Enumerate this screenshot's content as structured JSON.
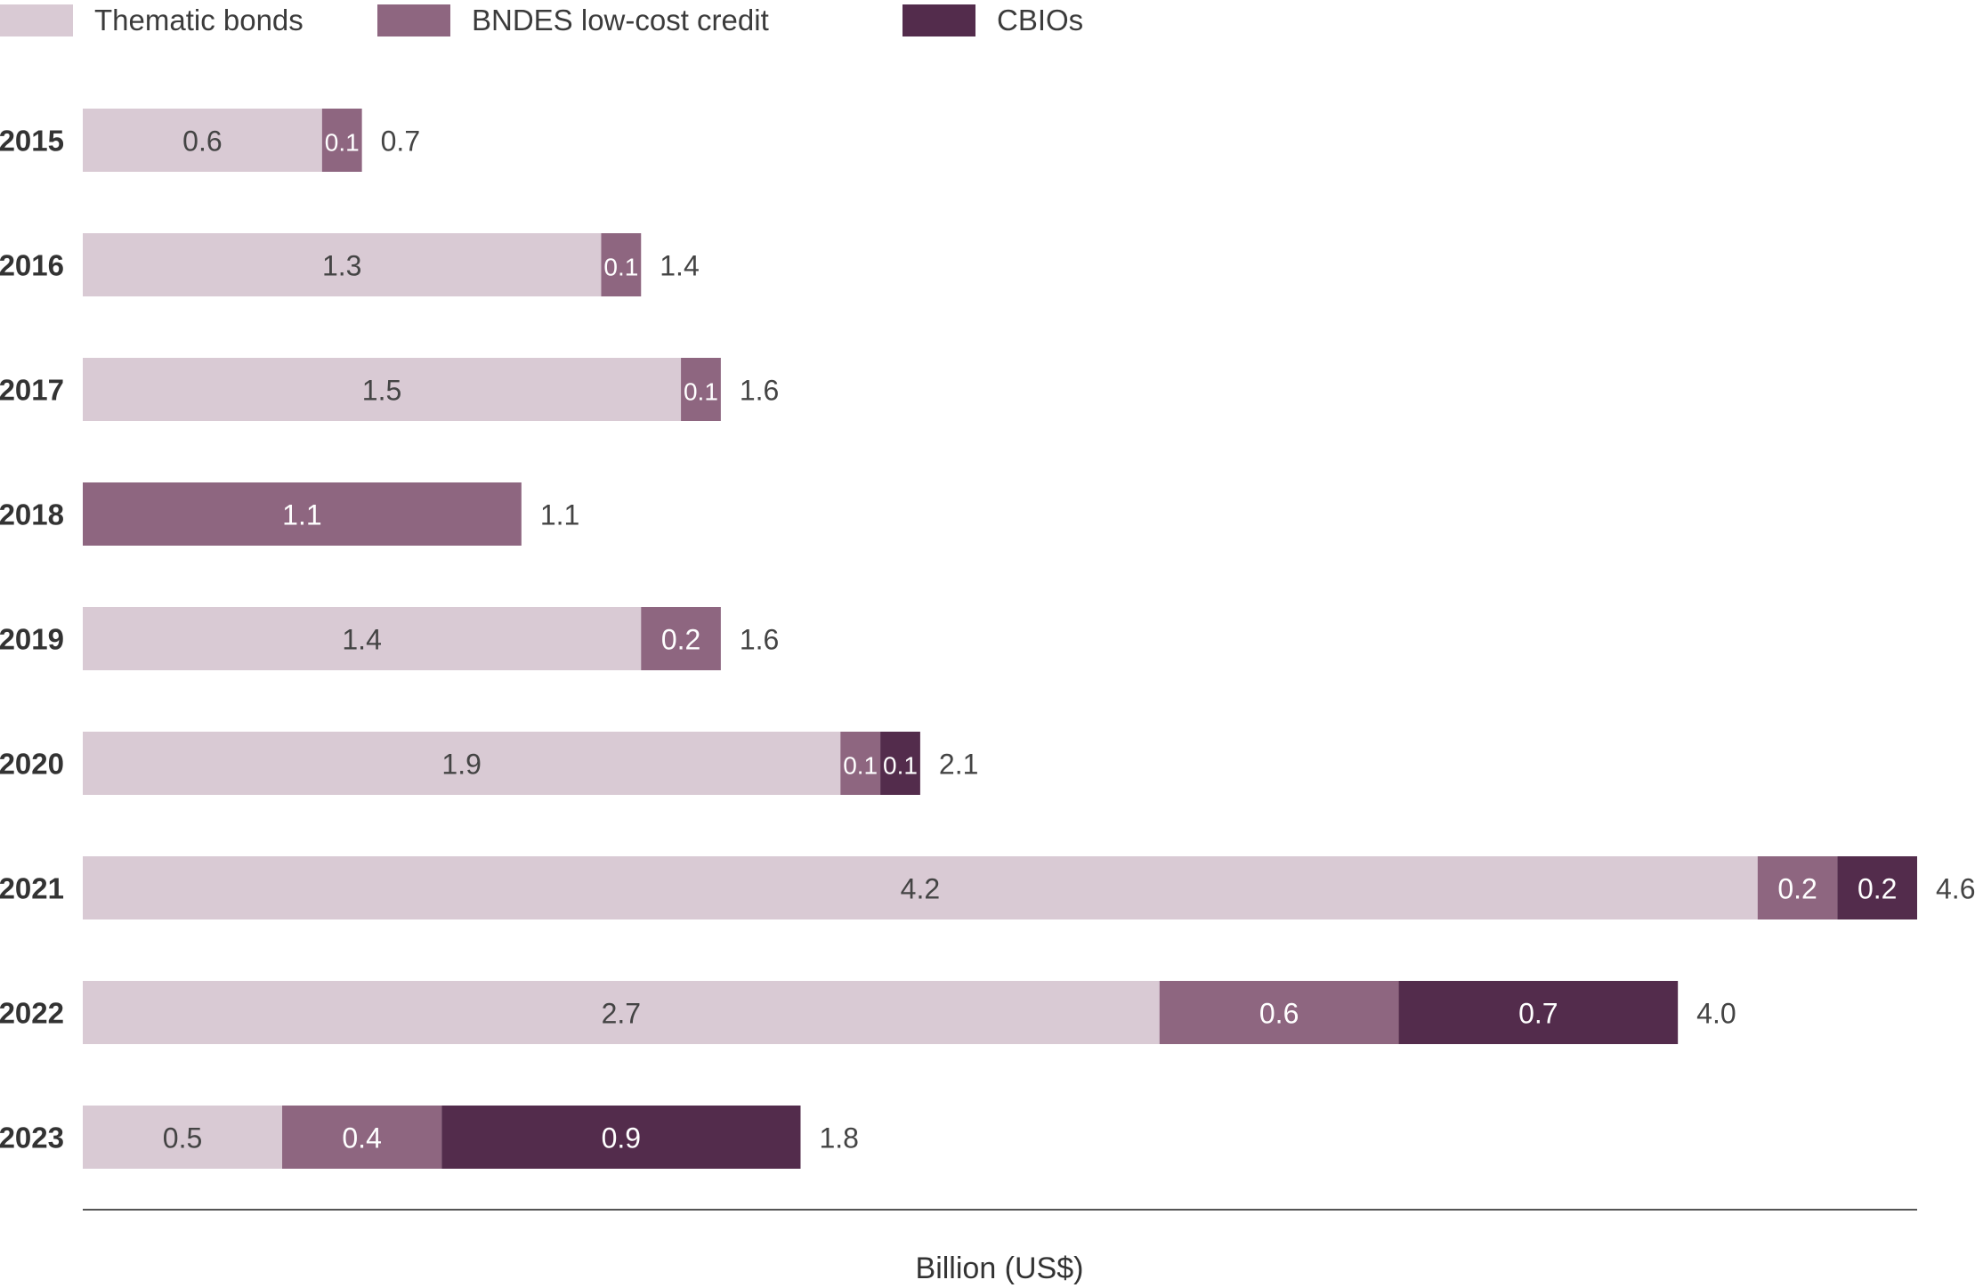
{
  "chart_data": {
    "type": "bar",
    "orientation": "horizontal",
    "stacked": true,
    "categories": [
      "2015",
      "2016",
      "2017",
      "2018",
      "2019",
      "2020",
      "2021",
      "2022",
      "2023"
    ],
    "series": [
      {
        "name": "Thematic bonds",
        "color": "#d9cad4",
        "values": [
          0.6,
          1.3,
          1.5,
          0,
          1.4,
          1.9,
          4.2,
          2.7,
          0.5
        ],
        "labels": [
          "0.6",
          "1.3",
          "1.5",
          "",
          "1.4",
          "1.9",
          "4.2",
          "2.7",
          "0.5"
        ],
        "label_color": "#444444"
      },
      {
        "name": "BNDES low-cost credit",
        "color": "#8e6680",
        "values": [
          0.1,
          0.1,
          0.1,
          1.1,
          0.2,
          0.1,
          0.2,
          0.6,
          0.4
        ],
        "labels": [
          "0.1",
          "0.1",
          "0.1",
          "1.1",
          "0.2",
          "0.1",
          "0.2",
          "0.6",
          "0.4"
        ],
        "label_color": "#ffffff"
      },
      {
        "name": "CBIOs",
        "color": "#532c4c",
        "values": [
          0,
          0,
          0,
          0,
          0,
          0.1,
          0.2,
          0.7,
          0.9
        ],
        "labels": [
          "",
          "",
          "",
          "",
          "",
          "0.1",
          "0.2",
          "0.7",
          "0.9"
        ],
        "label_color": "#ffffff"
      }
    ],
    "totals": [
      "0.7",
      "1.4",
      "1.6",
      "1.1",
      "1.6",
      "2.1",
      "4.6",
      "4.0",
      "1.8"
    ],
    "xlabel": "Billion (US$)",
    "xlim": [
      0,
      4.6
    ],
    "legend": "top-left",
    "grid": false
  }
}
